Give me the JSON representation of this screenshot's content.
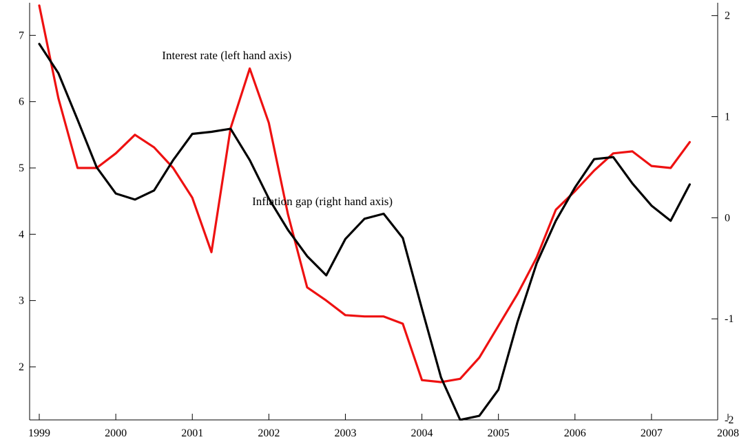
{
  "chart_data": {
    "type": "line",
    "title": "",
    "xlabel": "",
    "ylabel": "",
    "xlim": [
      1998.9,
      2008.0
    ],
    "ylim_left": [
      1.2,
      7.45
    ],
    "ylim_right": [
      -2,
      2.1
    ],
    "grid": false,
    "legend": "none",
    "x_ticks": [
      1999,
      2000,
      2001,
      2002,
      2003,
      2004,
      2005,
      2006,
      2007,
      2008
    ],
    "x_tick_labels": [
      "1999",
      "2000",
      "2001",
      "2002",
      "2003",
      "2004",
      "2005",
      "2006",
      "2007",
      "2008"
    ],
    "y_left_ticks": [
      2,
      3,
      4,
      5,
      6,
      7
    ],
    "y_left_tick_labels": [
      "2",
      "3",
      "4",
      "5",
      "6",
      "7"
    ],
    "y_right_ticks": [
      -2,
      -1,
      0,
      1,
      2
    ],
    "y_right_tick_labels": [
      "-2",
      "-1",
      "0",
      "1",
      "2"
    ],
    "annotations": [
      {
        "text": "Interest rate (left hand axis)",
        "x": 2001.45,
        "y_left": 6.7
      },
      {
        "text": "Inflation gap (right hand axis)",
        "x": 2002.7,
        "y_left": 4.5
      }
    ],
    "series": [
      {
        "axis": "left",
        "color": "#ee1111",
        "x": [
          1999.0,
          1999.25,
          1999.5,
          1999.75,
          2000.0,
          2000.25,
          2000.5,
          2000.75,
          2001.0,
          2001.25,
          2001.5,
          2001.75,
          2002.0,
          2002.25,
          2002.5,
          2002.75,
          2003.0,
          2003.25,
          2003.5,
          2003.75,
          2004.0,
          2004.25,
          2004.5,
          2004.75,
          2005.0,
          2005.25,
          2005.5,
          2005.75,
          2006.0,
          2006.25,
          2006.5,
          2006.75,
          2007.0,
          2007.25,
          2007.5
        ],
        "values": [
          7.45,
          6.05,
          5.0,
          5.0,
          5.22,
          5.5,
          5.31,
          5.0,
          4.55,
          3.73,
          5.6,
          6.5,
          5.68,
          4.3,
          3.2,
          3.0,
          2.78,
          2.76,
          2.76,
          2.65,
          1.8,
          1.77,
          1.82,
          2.14,
          2.62,
          3.1,
          3.65,
          4.37,
          4.65,
          4.96,
          5.22,
          5.25,
          5.03,
          5.0,
          5.39
        ]
      },
      {
        "axis": "right",
        "color": "#000000",
        "x": [
          1999.0,
          1999.25,
          1999.5,
          1999.75,
          2000.0,
          2000.25,
          2000.5,
          2000.75,
          2001.0,
          2001.25,
          2001.5,
          2001.75,
          2002.0,
          2002.25,
          2002.5,
          2002.75,
          2003.0,
          2003.25,
          2003.5,
          2003.75,
          2004.0,
          2004.25,
          2004.5,
          2004.75,
          2005.0,
          2005.25,
          2005.5,
          2005.75,
          2006.0,
          2006.25,
          2006.5,
          2006.75,
          2007.0,
          2007.25,
          2007.5
        ],
        "values": [
          1.72,
          1.43,
          0.97,
          0.5,
          0.24,
          0.18,
          0.27,
          0.57,
          0.83,
          0.85,
          0.88,
          0.57,
          0.19,
          -0.12,
          -0.38,
          -0.57,
          -0.21,
          -0.01,
          0.04,
          -0.2,
          -0.9,
          -1.58,
          -2.0,
          -1.96,
          -1.7,
          -1.03,
          -0.45,
          -0.03,
          0.3,
          0.58,
          0.6,
          0.34,
          0.12,
          -0.03,
          0.33
        ]
      }
    ]
  }
}
